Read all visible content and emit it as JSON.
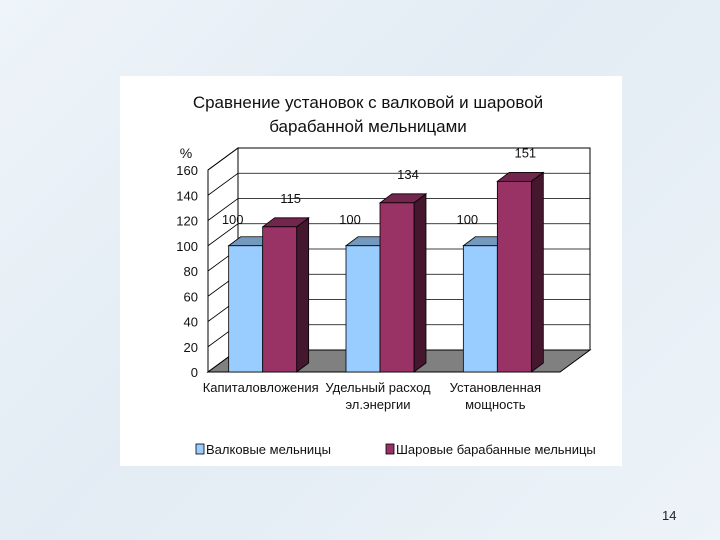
{
  "slide": {
    "page_number": "14"
  },
  "chart_data": {
    "type": "bar",
    "title_lines": [
      "Сравнение установок с валковой и шаровой",
      "барабанной мельницами"
    ],
    "ylabel": "%",
    "ylim": [
      0,
      160
    ],
    "yticks": [
      0,
      20,
      40,
      60,
      80,
      100,
      120,
      140,
      160
    ],
    "categories": [
      [
        "Капиталовложения"
      ],
      [
        "Удельный расход",
        "эл.энергии"
      ],
      [
        "Установленная",
        "мощность"
      ]
    ],
    "series": [
      {
        "name": "Валковые мельницы",
        "values": [
          100,
          100,
          100
        ],
        "color": "#99ccff"
      },
      {
        "name": "Шаровые барабанные мельницы",
        "values": [
          115,
          134,
          151
        ],
        "color": "#993366"
      }
    ],
    "legend_position": "bottom",
    "grid": true,
    "style": "3d-bar"
  }
}
